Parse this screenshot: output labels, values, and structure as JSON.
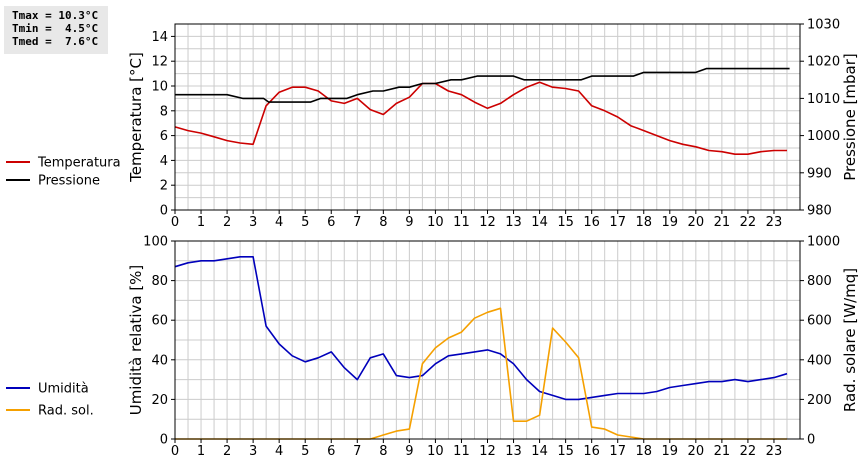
{
  "stats": {
    "tmax": "Tmax = 10.3°C",
    "tmin": "Tmin =  4.5°C",
    "tmed": "Tmed =  7.6°C"
  },
  "colors": {
    "temperature": "#cc0000",
    "pressure": "#000000",
    "humidity": "#0000bb",
    "solar": "#f5a000",
    "grid": "#cccccc"
  },
  "chart_data": [
    {
      "type": "line",
      "x_ticks": [
        "0",
        "1",
        "2",
        "3",
        "4",
        "5",
        "6",
        "7",
        "8",
        "9",
        "10",
        "11",
        "12",
        "13",
        "14",
        "15",
        "16",
        "17",
        "18",
        "19",
        "20",
        "21",
        "22",
        "23"
      ],
      "xlim": [
        0,
        24
      ],
      "ylabel_left": "Temperatura [°C]",
      "ylabel_right": "Pressione [mbar]",
      "ylim_left": [
        0,
        15
      ],
      "ylim_right": [
        980,
        1030
      ],
      "yticks_left": [
        "0",
        "2",
        "4",
        "6",
        "8",
        "10",
        "12",
        "14"
      ],
      "yticks_right": [
        "980",
        "990",
        "1000",
        "1010",
        "1020",
        "1030"
      ],
      "grid": true,
      "series": [
        {
          "name": "Temperatura",
          "axis": "left",
          "x": [
            0,
            0.5,
            1,
            1.5,
            2,
            2.5,
            3,
            3.5,
            4,
            4.5,
            5,
            5.5,
            6,
            6.5,
            7,
            7.5,
            8,
            8.5,
            9,
            9.5,
            10,
            10.5,
            11,
            11.5,
            12,
            12.5,
            13,
            13.5,
            14,
            14.5,
            15,
            15.5,
            16,
            16.5,
            17,
            17.5,
            18,
            18.5,
            19,
            19.5,
            20,
            20.5,
            21,
            21.5,
            22,
            22.5,
            23,
            23.5
          ],
          "values": [
            6.7,
            6.4,
            6.2,
            5.9,
            5.6,
            5.4,
            5.3,
            8.4,
            9.5,
            9.9,
            9.9,
            9.6,
            8.8,
            8.6,
            9.0,
            8.1,
            7.7,
            8.6,
            9.1,
            10.2,
            10.2,
            9.6,
            9.3,
            8.7,
            8.2,
            8.6,
            9.3,
            9.9,
            10.3,
            9.9,
            9.8,
            9.6,
            8.4,
            8.0,
            7.5,
            6.8,
            6.4,
            6.0,
            5.6,
            5.3,
            5.1,
            4.8,
            4.7,
            4.5,
            4.5,
            4.7,
            4.8,
            4.8
          ]
        },
        {
          "name": "Pressione",
          "axis": "right",
          "x": [
            0,
            2,
            2.6,
            3.4,
            3.6,
            4,
            5.2,
            5.6,
            6.6,
            7,
            7.6,
            8,
            8.6,
            9,
            9.5,
            10,
            10.6,
            11,
            11.6,
            12,
            13,
            13.4,
            14,
            15,
            15.6,
            16,
            17,
            17.6,
            18,
            20,
            20.4,
            21,
            23.6
          ],
          "values": [
            1011,
            1011,
            1010,
            1010,
            1009,
            1009,
            1009,
            1010,
            1010,
            1011,
            1012,
            1012,
            1013,
            1013,
            1014,
            1014,
            1015,
            1015,
            1016,
            1016,
            1016,
            1015,
            1015,
            1015,
            1015,
            1016,
            1016,
            1016,
            1017,
            1017,
            1018,
            1018,
            1018
          ]
        }
      ]
    },
    {
      "type": "line",
      "x_ticks": [
        "0",
        "1",
        "2",
        "3",
        "4",
        "5",
        "6",
        "7",
        "8",
        "9",
        "10",
        "11",
        "12",
        "13",
        "14",
        "15",
        "16",
        "17",
        "18",
        "19",
        "20",
        "21",
        "22",
        "23"
      ],
      "xlim": [
        0,
        24
      ],
      "ylabel_left": "Umidità relativa [%]",
      "ylabel_right": "Rad. solare [W/mq]",
      "ylim_left": [
        0,
        100
      ],
      "ylim_right": [
        0,
        1000
      ],
      "yticks_left": [
        "0",
        "20",
        "40",
        "60",
        "80",
        "100"
      ],
      "yticks_right": [
        "0",
        "200",
        "400",
        "600",
        "800",
        "1000"
      ],
      "grid": true,
      "series": [
        {
          "name": "Umidità",
          "axis": "left",
          "x": [
            0,
            0.5,
            1,
            1.5,
            2,
            2.5,
            3,
            3.5,
            4,
            4.5,
            5,
            5.5,
            6,
            6.5,
            7,
            7.5,
            8,
            8.5,
            9,
            9.5,
            10,
            10.5,
            11,
            11.5,
            12,
            12.5,
            13,
            13.5,
            14,
            14.5,
            15,
            15.5,
            16,
            16.5,
            17,
            17.5,
            18,
            18.5,
            19,
            19.5,
            20,
            20.5,
            21,
            21.5,
            22,
            22.5,
            23,
            23.5
          ],
          "values": [
            87,
            89,
            90,
            90,
            91,
            92,
            92,
            57,
            48,
            42,
            39,
            41,
            44,
            36,
            30,
            41,
            43,
            32,
            31,
            32,
            38,
            42,
            43,
            44,
            45,
            43,
            38,
            30,
            24,
            22,
            20,
            20,
            21,
            22,
            23,
            23,
            23,
            24,
            26,
            27,
            28,
            29,
            29,
            30,
            29,
            30,
            31,
            33
          ]
        },
        {
          "name": "Rad. sol.",
          "axis": "right",
          "x": [
            0,
            7,
            7.5,
            8,
            8.5,
            9,
            9.5,
            10,
            10.5,
            11,
            11.5,
            12,
            12.5,
            13,
            13.5,
            14,
            14.5,
            15,
            15.5,
            16,
            16.5,
            17,
            17.5,
            18,
            23.5
          ],
          "values": [
            0,
            0,
            0,
            20,
            40,
            50,
            380,
            460,
            510,
            540,
            610,
            640,
            660,
            90,
            90,
            120,
            560,
            490,
            410,
            60,
            50,
            20,
            10,
            0,
            0
          ]
        }
      ]
    }
  ]
}
